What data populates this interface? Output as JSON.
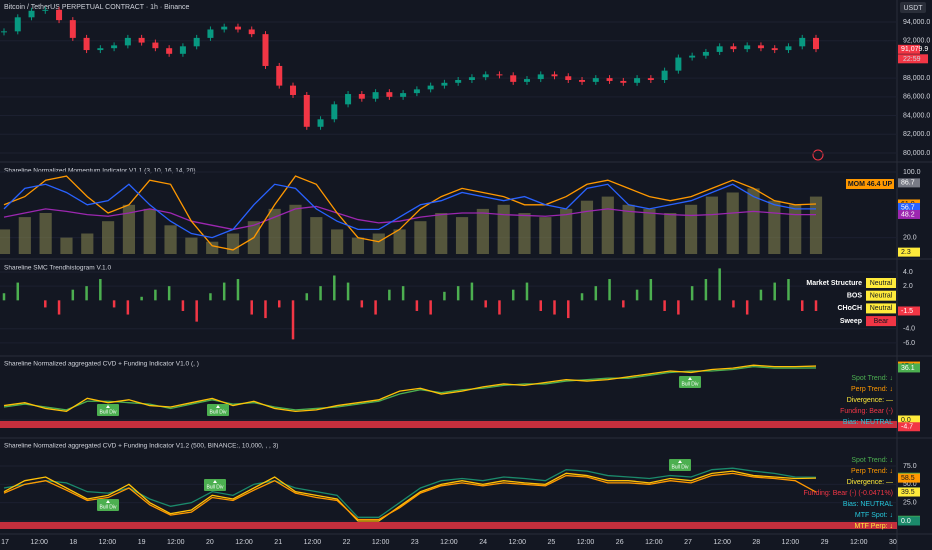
{
  "header": {
    "symbol": "Bitcoin / TetherUS PERPETUAL CONTRACT · 1h · Binance",
    "currency": "USDT",
    "annotation": "Bull Div"
  },
  "time_axis": [
    "17",
    "12:00",
    "18",
    "12:00",
    "19",
    "12:00",
    "20",
    "12:00",
    "21",
    "12:00",
    "22",
    "12:00",
    "23",
    "12:00",
    "24",
    "12:00",
    "25",
    "12:00",
    "26",
    "12:00",
    "27",
    "12:00",
    "28",
    "12:00",
    "29",
    "12:00",
    "30"
  ],
  "chart_data": [
    {
      "type": "candlestick",
      "up_color": "#089981",
      "down_color": "#f23645",
      "values": [
        93000,
        94500,
        95200,
        95300,
        94200,
        92300,
        91000,
        91200,
        91500,
        92300,
        91800,
        91200,
        90600,
        91400,
        92300,
        93200,
        93500,
        93200,
        92700,
        89300,
        87200,
        86200,
        82800,
        83600,
        85200,
        86300,
        85800,
        86500,
        86000,
        86400,
        86800,
        87200,
        87500,
        87800,
        88100,
        88400,
        88300,
        87600,
        87900,
        88400,
        88200,
        87800,
        87600,
        88000,
        87700,
        87500,
        88000,
        87800,
        88800,
        90200,
        90400,
        90800,
        91400,
        91100,
        91500,
        91200,
        91000,
        91400,
        92300,
        91100
      ],
      "ylim": [
        79250,
        96350
      ],
      "yticks": [
        {
          "value": 94000,
          "label": "94,000.0"
        },
        {
          "value": 92000,
          "label": "92,000.0"
        },
        {
          "value": 88000,
          "label": "88,000.0"
        },
        {
          "value": 86000,
          "label": "86,000.0"
        },
        {
          "value": 84000,
          "label": "84,000.0"
        },
        {
          "value": 82000,
          "label": "82,000.0"
        },
        {
          "value": 80000,
          "label": "80,000.0"
        }
      ],
      "tags": [
        {
          "value": 91079.9,
          "label": "91,079.9",
          "color": "#f23645"
        }
      ],
      "countdown": "22:59"
    },
    {
      "type": "combo",
      "title": "Shareline Normalized Momentum Indicator V1.1 (3, 10, 16, 14, 20)",
      "ylim": [
        -1.2,
        108.5
      ],
      "yticks": [
        {
          "value": 100,
          "label": "100.0"
        },
        {
          "value": 20,
          "label": "20.0"
        }
      ],
      "series": [
        {
          "mark": "bar",
          "color": "#8d8a52",
          "values": [
            30,
            45,
            50,
            20,
            25,
            40,
            60,
            55,
            35,
            20,
            15,
            25,
            40,
            55,
            60,
            45,
            30,
            20,
            25,
            30,
            40,
            50,
            45,
            55,
            60,
            50,
            45,
            55,
            65,
            70,
            60,
            55,
            50,
            60,
            70,
            75,
            80,
            65,
            60,
            70
          ]
        },
        {
          "mark": "line",
          "color": "#9c27b0",
          "values": [
            45,
            50,
            55,
            52,
            48,
            46,
            50,
            55,
            50,
            40,
            35,
            30,
            35,
            45,
            55,
            58,
            50,
            42,
            38,
            40,
            45,
            48,
            50,
            50,
            48,
            47,
            46,
            48,
            52,
            55,
            52,
            50,
            48,
            47,
            48,
            50,
            52,
            50,
            48,
            48
          ]
        },
        {
          "mark": "line",
          "color": "#ff9800",
          "values": [
            60,
            70,
            90,
            95,
            70,
            50,
            60,
            90,
            85,
            40,
            10,
            5,
            20,
            60,
            95,
            85,
            50,
            20,
            15,
            30,
            55,
            70,
            80,
            75,
            70,
            60,
            60,
            70,
            85,
            90,
            80,
            70,
            65,
            70,
            80,
            90,
            80,
            65,
            60,
            61
          ]
        },
        {
          "mark": "line",
          "color": "#2962ff",
          "values": [
            55,
            80,
            85,
            75,
            60,
            65,
            85,
            60,
            40,
            25,
            20,
            30,
            60,
            85,
            80,
            55,
            40,
            30,
            30,
            45,
            60,
            65,
            75,
            70,
            65,
            70,
            60,
            55,
            80,
            85,
            60,
            55,
            60,
            65,
            75,
            85,
            70,
            60,
            55,
            55
          ]
        }
      ],
      "headline": {
        "label": "MOM 46.4 UP",
        "color": "#ff9800"
      },
      "tags": [
        {
          "value": 86.7,
          "color": "#787b86"
        },
        {
          "value": 61.0,
          "label": "61.0",
          "color": "#ff9800"
        },
        {
          "value": 56.7,
          "color": "#2962ff"
        },
        {
          "value": 48.2,
          "color": "#9c27b0"
        },
        {
          "value": 2.3,
          "color": "#ffeb3b"
        }
      ]
    },
    {
      "type": "bar",
      "title": "Shareline SMC Trendhistogram V.1.0",
      "ylim": [
        -7.7,
        5.4
      ],
      "yticks": [
        {
          "value": 4,
          "label": "4.0"
        },
        {
          "value": 2,
          "label": "2.0"
        },
        {
          "value": -4,
          "label": "-4.0"
        },
        {
          "value": -6,
          "label": "-6.0"
        }
      ],
      "positive_color": "#4caf50",
      "negative_color": "#f23645",
      "values": [
        1,
        2.5,
        0,
        -1,
        -2,
        1.5,
        2,
        3,
        -1,
        -2,
        0.5,
        1.5,
        2,
        -1.5,
        -3,
        1,
        2.5,
        3,
        -2,
        -2.5,
        -1,
        -5.5,
        1,
        2,
        3.5,
        2.5,
        -1,
        -2,
        1.5,
        2,
        -1.5,
        -2,
        1.2,
        2,
        2.5,
        -1,
        -2,
        1.5,
        2.5,
        -1.5,
        -2,
        -2.5,
        1,
        2,
        3,
        -1,
        1.5,
        3,
        -1.5,
        -2,
        2,
        3,
        4.5,
        -1,
        -2,
        1.5,
        2.5,
        3,
        -1.5,
        -1.5
      ],
      "table": [
        {
          "name": "Market Structure",
          "state": "Neutral",
          "color": "#ffeb3b"
        },
        {
          "name": "BOS",
          "state": "Neutral",
          "color": "#ffeb3b"
        },
        {
          "name": "CHoCH",
          "state": "Neutral",
          "color": "#ffeb3b"
        },
        {
          "name": "Sweep",
          "state": "Bear",
          "color": "#f23645"
        }
      ],
      "tags": [
        {
          "value": -1.5,
          "color": "#f23645"
        }
      ]
    },
    {
      "type": "line",
      "title": "Shareline Normalized aggregated CVD + Funding Indicator V1.0 (, )",
      "ylim": [
        -11.8,
        43
      ],
      "yticks": [
        {
          "value": 0,
          "label": "0.0"
        }
      ],
      "series": [
        {
          "color": "#4caf50",
          "values": [
            9,
            11,
            9,
            7,
            13,
            13,
            12,
            11,
            8,
            11,
            14,
            11,
            12,
            9,
            7,
            8,
            9,
            11,
            13,
            18,
            21,
            19,
            21,
            22,
            24,
            25,
            25,
            27,
            28,
            29,
            29,
            31,
            33,
            34,
            34,
            35,
            37,
            36,
            36,
            36.1
          ]
        },
        {
          "color": "#ffc107",
          "values": [
            10,
            12,
            8,
            6,
            15,
            12,
            14,
            10,
            9,
            12,
            15,
            10,
            13,
            8,
            6,
            7,
            10,
            12,
            14,
            20,
            22,
            18,
            20,
            23,
            25,
            24,
            26,
            28,
            27,
            28,
            30,
            32,
            34,
            33,
            35,
            36,
            38,
            37,
            37,
            37.4
          ]
        }
      ],
      "status": [
        {
          "text": "Spot Trend: ↓",
          "color": "#4caf50"
        },
        {
          "text": "Perp Trend: ↓",
          "color": "#ff9800"
        },
        {
          "text": "Divergence: —",
          "color": "#ffeb3b"
        },
        {
          "text": "Funding: Bear (-)",
          "color": "#f23645"
        },
        {
          "text": "Bias: NEUTRAL",
          "color": "#26c6da"
        }
      ],
      "tags": [
        {
          "value": 37.4,
          "color": "#ff9800"
        },
        {
          "value": 36.1,
          "color": "#4caf50"
        },
        {
          "value": 0,
          "label": "0.0",
          "color": "#ffeb3b"
        },
        {
          "value": -4.7,
          "color": "#f23645"
        }
      ]
    },
    {
      "type": "line",
      "title": "Shareline Normalized aggregated CVD + Funding Indicator V1.2 (500, BINANCE:, 10,000, , , 3)",
      "ylim": [
        -16.4,
        110.5
      ],
      "yticks": [
        {
          "value": 75,
          "label": "75.0"
        },
        {
          "value": 50,
          "label": "50.0"
        },
        {
          "value": 25,
          "label": "25.0"
        },
        {
          "value": 0,
          "label": "0.0"
        }
      ],
      "series": [
        {
          "color": "#1b8a6b",
          "values": [
            45,
            50,
            55,
            52,
            40,
            38,
            45,
            30,
            20,
            25,
            40,
            35,
            50,
            55,
            45,
            40,
            35,
            5,
            5,
            25,
            45,
            55,
            58,
            55,
            60,
            58,
            55,
            70,
            68,
            62,
            60,
            58,
            62,
            60,
            70,
            72,
            68,
            65,
            60,
            59.7
          ]
        },
        {
          "color": "#ffc107",
          "values": [
            40,
            55,
            60,
            45,
            30,
            35,
            50,
            25,
            10,
            15,
            35,
            30,
            45,
            60,
            40,
            35,
            30,
            0,
            0,
            20,
            40,
            50,
            55,
            50,
            55,
            52,
            50,
            65,
            62,
            55,
            55,
            52,
            58,
            55,
            65,
            68,
            62,
            60,
            58,
            58.5
          ]
        },
        {
          "color": "#ff9800",
          "values": [
            38,
            50,
            55,
            42,
            28,
            32,
            45,
            22,
            8,
            12,
            32,
            28,
            42,
            55,
            38,
            32,
            28,
            2,
            2,
            18,
            38,
            48,
            52,
            48,
            52,
            50,
            48,
            62,
            60,
            52,
            52,
            50,
            55,
            52,
            62,
            65,
            60,
            58,
            55,
            39.5
          ]
        }
      ],
      "status": [
        {
          "text": "Spot Trend: ↓",
          "color": "#4caf50"
        },
        {
          "text": "Perp Trend: ↓",
          "color": "#ff9800"
        },
        {
          "text": "Divergence: —",
          "color": "#ffeb3b"
        },
        {
          "text": "Funding: Bear (-) (-0.0471%)",
          "color": "#f23645"
        },
        {
          "text": "Bias: NEUTRAL",
          "color": "#26c6da"
        },
        {
          "text": "MTF Spot: ↓",
          "color": "#26c6da"
        },
        {
          "text": "MTF Perp: ↓",
          "color": "#ffeb3b"
        }
      ],
      "tags": [
        {
          "value": 59.7,
          "color": "#4caf50"
        },
        {
          "value": 58.5,
          "color": "#ff9800"
        },
        {
          "value": 39.7,
          "color": "#4caf50"
        },
        {
          "value": 39.5,
          "color": "#ffeb3b"
        },
        {
          "value": 1.0,
          "label": "1.0",
          "color": "#4caf50"
        },
        {
          "value": 0,
          "label": "0.0",
          "color": "#1b8a6b"
        }
      ]
    }
  ]
}
